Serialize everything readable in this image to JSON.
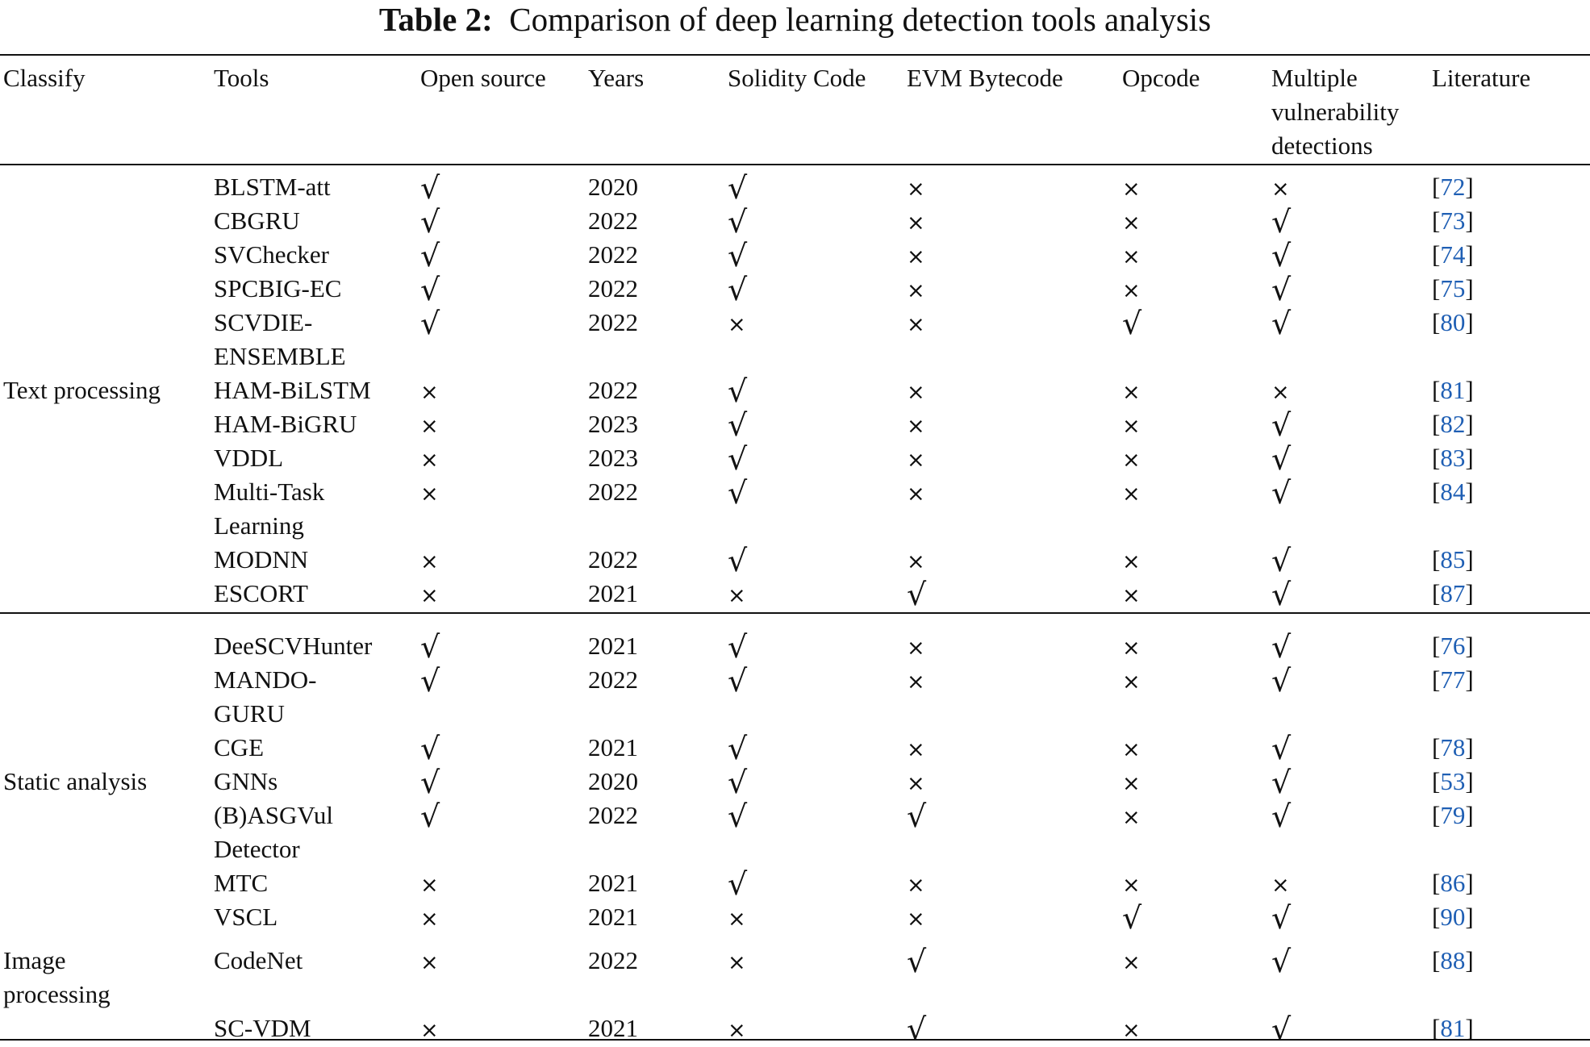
{
  "caption": {
    "label": "Table 2:",
    "text": "Comparison of deep learning detection tools analysis"
  },
  "columns": [
    "Classify",
    "Tools",
    "Open source",
    "Years",
    "Solidity Code",
    "EVM Bytecode",
    "Opcode",
    "Multiple vulnerability detections",
    "Literature"
  ],
  "column_header_lines": {
    "multiple": [
      "Multiple",
      "vulnerability",
      "detections"
    ]
  },
  "marks": {
    "yes": "√",
    "no": "×"
  },
  "colors": {
    "text": "#111111",
    "reference_link": "#1f5fb4"
  },
  "groups": [
    {
      "category": "Text processing",
      "rows": [
        {
          "tool": [
            "BLSTM-att"
          ],
          "open_source": "yes",
          "year": "2020",
          "solidity": "yes",
          "evm": "no",
          "opcode": "no",
          "multiple": "no",
          "ref": "72"
        },
        {
          "tool": [
            "CBGRU"
          ],
          "open_source": "yes",
          "year": "2022",
          "solidity": "yes",
          "evm": "no",
          "opcode": "no",
          "multiple": "yes",
          "ref": "73"
        },
        {
          "tool": [
            "SVChecker"
          ],
          "open_source": "yes",
          "year": "2022",
          "solidity": "yes",
          "evm": "no",
          "opcode": "no",
          "multiple": "yes",
          "ref": "74"
        },
        {
          "tool": [
            "SPCBIG-EC"
          ],
          "open_source": "yes",
          "year": "2022",
          "solidity": "yes",
          "evm": "no",
          "opcode": "no",
          "multiple": "yes",
          "ref": "75"
        },
        {
          "tool": [
            "SCVDIE-",
            "ENSEMBLE"
          ],
          "open_source": "yes",
          "year": "2022",
          "solidity": "no",
          "evm": "no",
          "opcode": "yes",
          "multiple": "yes",
          "ref": "80"
        },
        {
          "tool": [
            "HAM-BiLSTM"
          ],
          "open_source": "no",
          "year": "2022",
          "solidity": "yes",
          "evm": "no",
          "opcode": "no",
          "multiple": "no",
          "ref": "81"
        },
        {
          "tool": [
            "HAM-BiGRU"
          ],
          "open_source": "no",
          "year": "2023",
          "solidity": "yes",
          "evm": "no",
          "opcode": "no",
          "multiple": "yes",
          "ref": "82"
        },
        {
          "tool": [
            "VDDL"
          ],
          "open_source": "no",
          "year": "2023",
          "solidity": "yes",
          "evm": "no",
          "opcode": "no",
          "multiple": "yes",
          "ref": "83"
        },
        {
          "tool": [
            "Multi-Task",
            "Learning"
          ],
          "open_source": "no",
          "year": "2022",
          "solidity": "yes",
          "evm": "no",
          "opcode": "no",
          "multiple": "yes",
          "ref": "84"
        },
        {
          "tool": [
            "MODNN"
          ],
          "open_source": "no",
          "year": "2022",
          "solidity": "yes",
          "evm": "no",
          "opcode": "no",
          "multiple": "yes",
          "ref": "85"
        },
        {
          "tool": [
            "ESCORT"
          ],
          "open_source": "no",
          "year": "2021",
          "solidity": "no",
          "evm": "yes",
          "opcode": "no",
          "multiple": "yes",
          "ref": "87"
        }
      ]
    },
    {
      "category": "Static analysis",
      "rows": [
        {
          "tool": [
            "DeeSCVHunter"
          ],
          "open_source": "yes",
          "year": "2021",
          "solidity": "yes",
          "evm": "no",
          "opcode": "no",
          "multiple": "yes",
          "ref": "76"
        },
        {
          "tool": [
            "MANDO-",
            "GURU"
          ],
          "open_source": "yes",
          "year": "2022",
          "solidity": "yes",
          "evm": "no",
          "opcode": "no",
          "multiple": "yes",
          "ref": "77"
        },
        {
          "tool": [
            "CGE"
          ],
          "open_source": "yes",
          "year": "2021",
          "solidity": "yes",
          "evm": "no",
          "opcode": "no",
          "multiple": "yes",
          "ref": "78"
        },
        {
          "tool": [
            "GNNs"
          ],
          "open_source": "yes",
          "year": "2020",
          "solidity": "yes",
          "evm": "no",
          "opcode": "no",
          "multiple": "yes",
          "ref": "53"
        },
        {
          "tool": [
            "(B)ASGVul",
            "Detector"
          ],
          "open_source": "yes",
          "year": "2022",
          "solidity": "yes",
          "evm": "yes",
          "opcode": "no",
          "multiple": "yes",
          "ref": "79"
        },
        {
          "tool": [
            "MTC"
          ],
          "open_source": "no",
          "year": "2021",
          "solidity": "yes",
          "evm": "no",
          "opcode": "no",
          "multiple": "no",
          "ref": "86"
        },
        {
          "tool": [
            "VSCL"
          ],
          "open_source": "no",
          "year": "2021",
          "solidity": "no",
          "evm": "no",
          "opcode": "yes",
          "multiple": "yes",
          "ref": "90"
        }
      ]
    },
    {
      "category": "Image processing",
      "category_lines": [
        "Image",
        "processing"
      ],
      "rows": [
        {
          "tool": [
            "CodeNet"
          ],
          "open_source": "no",
          "year": "2022",
          "solidity": "no",
          "evm": "yes",
          "opcode": "no",
          "multiple": "yes",
          "ref": "88"
        },
        {
          "tool": [
            "SC-VDM"
          ],
          "open_source": "no",
          "year": "2021",
          "solidity": "no",
          "evm": "yes",
          "opcode": "no",
          "multiple": "yes",
          "ref": "81"
        }
      ]
    }
  ]
}
